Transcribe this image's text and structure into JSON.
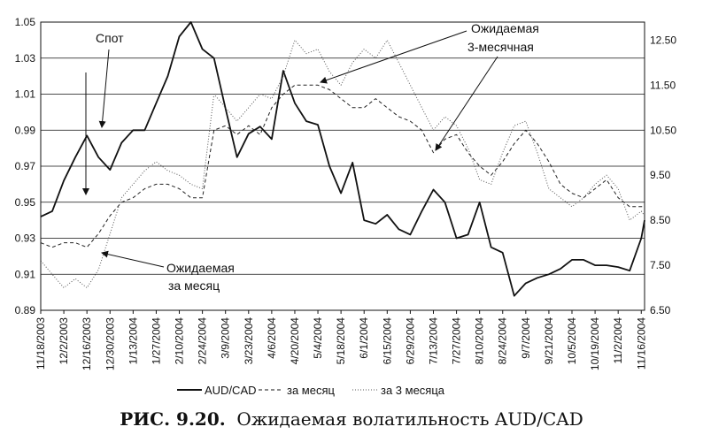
{
  "caption": {
    "prefix": "РИС. 9.20.",
    "title": "Ожидаемая волатильность AUD/CAD"
  },
  "annotations": {
    "spot": "Спот",
    "monthly_line1": "Ожидаемая",
    "monthly_line2": "за месяц",
    "three_month_line1": "Ожидаемая",
    "three_month_line2": "3-месячная"
  },
  "chart_data": {
    "type": "line",
    "title": "",
    "x_tick_labels": [
      "11/18/2003",
      "12/2/2003",
      "12/16/2003",
      "12/30/2003",
      "1/13/2004",
      "1/27/2004",
      "2/10/2004",
      "2/24/2004",
      "3/9/2004",
      "3/23/2004",
      "4/6/2004",
      "4/20/2004",
      "5/4/2004",
      "5/18/2004",
      "6/1/2004",
      "6/15/2004",
      "6/29/2004",
      "7/13/2004",
      "7/27/2004",
      "8/10/2004",
      "8/24/2004",
      "9/7/2004",
      "9/21/2004",
      "10/5/2004",
      "10/19/2004",
      "11/2/2004",
      "11/16/2004"
    ],
    "x_range": [
      "11/18/2003",
      "11/18/2004"
    ],
    "left_axis": {
      "ylim": [
        0.89,
        1.05
      ],
      "ticks": [
        "0.89",
        "0.91",
        "0.93",
        "0.95",
        "0.97",
        "0.99",
        "1.01",
        "1.03",
        "1.05"
      ]
    },
    "right_axis": {
      "ylim": [
        6.5,
        12.9
      ],
      "ticks": [
        "6.50",
        "7.50",
        "8.50",
        "9.50",
        "10.50",
        "11.50",
        "12.50"
      ]
    },
    "grid": "horizontal",
    "legend_position": "bottom",
    "series": [
      {
        "name": "AUD/CAD",
        "axis": "left",
        "style": "solid",
        "x": [
          "11/18/2003",
          "11/25/2003",
          "12/2/2003",
          "12/9/2003",
          "12/16/2003",
          "12/23/2003",
          "12/30/2003",
          "1/6/2004",
          "1/13/2004",
          "1/20/2004",
          "1/27/2004",
          "2/3/2004",
          "2/10/2004",
          "2/17/2004",
          "2/24/2004",
          "3/2/2004",
          "3/9/2004",
          "3/16/2004",
          "3/23/2004",
          "3/30/2004",
          "4/6/2004",
          "4/13/2004",
          "4/20/2004",
          "4/27/2004",
          "5/4/2004",
          "5/11/2004",
          "5/18/2004",
          "5/25/2004",
          "6/1/2004",
          "6/8/2004",
          "6/15/2004",
          "6/22/2004",
          "6/29/2004",
          "7/6/2004",
          "7/13/2004",
          "7/20/2004",
          "7/27/2004",
          "8/3/2004",
          "8/10/2004",
          "8/17/2004",
          "8/24/2004",
          "8/31/2004",
          "9/7/2004",
          "9/14/2004",
          "9/21/2004",
          "9/28/2004",
          "10/5/2004",
          "10/12/2004",
          "10/19/2004",
          "10/26/2004",
          "11/2/2004",
          "11/9/2004",
          "11/16/2004",
          "11/18/2004"
        ],
        "values": [
          0.942,
          0.945,
          0.962,
          0.975,
          0.987,
          0.975,
          0.968,
          0.983,
          0.99,
          0.99,
          1.005,
          1.02,
          1.042,
          1.05,
          1.035,
          1.03,
          1.002,
          0.975,
          0.988,
          0.992,
          0.985,
          1.023,
          1.005,
          0.995,
          0.993,
          0.97,
          0.955,
          0.972,
          0.94,
          0.938,
          0.943,
          0.935,
          0.932,
          0.945,
          0.957,
          0.95,
          0.93,
          0.932,
          0.95,
          0.925,
          0.922,
          0.898,
          0.905,
          0.908,
          0.91,
          0.913,
          0.918,
          0.918,
          0.915,
          0.915,
          0.914,
          0.912,
          0.93,
          0.94
        ]
      },
      {
        "name": "за месяц",
        "axis": "right",
        "style": "dashed",
        "x": [
          "11/18/2003",
          "11/25/2003",
          "12/2/2003",
          "12/9/2003",
          "12/16/2003",
          "12/23/2003",
          "12/30/2003",
          "1/6/2004",
          "1/13/2004",
          "1/20/2004",
          "1/27/2004",
          "2/3/2004",
          "2/10/2004",
          "2/17/2004",
          "2/24/2004",
          "3/2/2004",
          "3/9/2004",
          "3/16/2004",
          "3/23/2004",
          "3/30/2004",
          "4/6/2004",
          "4/13/2004",
          "4/20/2004",
          "4/27/2004",
          "5/4/2004",
          "5/11/2004",
          "5/18/2004",
          "5/25/2004",
          "6/1/2004",
          "6/8/2004",
          "6/15/2004",
          "6/22/2004",
          "6/29/2004",
          "7/6/2004",
          "7/13/2004",
          "7/20/2004",
          "7/27/2004",
          "8/3/2004",
          "8/10/2004",
          "8/17/2004",
          "8/24/2004",
          "8/31/2004",
          "9/7/2004",
          "9/14/2004",
          "9/21/2004",
          "9/28/2004",
          "10/5/2004",
          "10/12/2004",
          "10/19/2004",
          "10/26/2004",
          "11/2/2004",
          "11/9/2004",
          "11/16/2004",
          "11/18/2004"
        ],
        "values": [
          8.0,
          7.9,
          8.0,
          8.0,
          7.9,
          8.2,
          8.6,
          8.9,
          9.0,
          9.2,
          9.3,
          9.3,
          9.2,
          9.0,
          9.0,
          10.5,
          10.6,
          10.4,
          10.6,
          10.4,
          11.0,
          11.3,
          11.5,
          11.5,
          11.5,
          11.4,
          11.2,
          11.0,
          11.0,
          11.2,
          11.0,
          10.8,
          10.7,
          10.5,
          10.0,
          10.3,
          10.4,
          10.0,
          9.7,
          9.5,
          9.8,
          10.2,
          10.5,
          10.2,
          9.8,
          9.3,
          9.1,
          9.0,
          9.2,
          9.4,
          9.0,
          8.8,
          8.8,
          8.8
        ]
      },
      {
        "name": "за 3 месяца",
        "axis": "right",
        "style": "dotted",
        "x": [
          "11/18/2003",
          "11/25/2003",
          "12/2/2003",
          "12/9/2003",
          "12/16/2003",
          "12/23/2003",
          "12/30/2003",
          "1/6/2004",
          "1/13/2004",
          "1/20/2004",
          "1/27/2004",
          "2/3/2004",
          "2/10/2004",
          "2/17/2004",
          "2/24/2004",
          "3/2/2004",
          "3/9/2004",
          "3/16/2004",
          "3/23/2004",
          "3/30/2004",
          "4/6/2004",
          "4/13/2004",
          "4/20/2004",
          "4/27/2004",
          "5/4/2004",
          "5/11/2004",
          "5/18/2004",
          "5/25/2004",
          "6/1/2004",
          "6/8/2004",
          "6/15/2004",
          "6/22/2004",
          "6/29/2004",
          "7/6/2004",
          "7/13/2004",
          "7/20/2004",
          "7/27/2004",
          "8/3/2004",
          "8/10/2004",
          "8/17/2004",
          "8/24/2004",
          "8/31/2004",
          "9/7/2004",
          "9/14/2004",
          "9/21/2004",
          "9/28/2004",
          "10/5/2004",
          "10/12/2004",
          "10/19/2004",
          "10/26/2004",
          "11/2/2004",
          "11/9/2004",
          "11/16/2004",
          "11/18/2004"
        ],
        "values": [
          7.6,
          7.3,
          7.0,
          7.2,
          7.0,
          7.4,
          8.2,
          9.0,
          9.3,
          9.6,
          9.8,
          9.6,
          9.5,
          9.3,
          9.2,
          11.3,
          11.0,
          10.7,
          11.0,
          11.3,
          11.2,
          11.7,
          12.5,
          12.2,
          12.3,
          11.8,
          11.5,
          12.0,
          12.3,
          12.1,
          12.5,
          12.0,
          11.5,
          11.0,
          10.5,
          10.8,
          10.6,
          10.1,
          9.4,
          9.3,
          10.0,
          10.6,
          10.7,
          10.0,
          9.2,
          9.0,
          8.8,
          9.0,
          9.3,
          9.5,
          9.2,
          8.5,
          8.7,
          8.6
        ]
      }
    ]
  }
}
